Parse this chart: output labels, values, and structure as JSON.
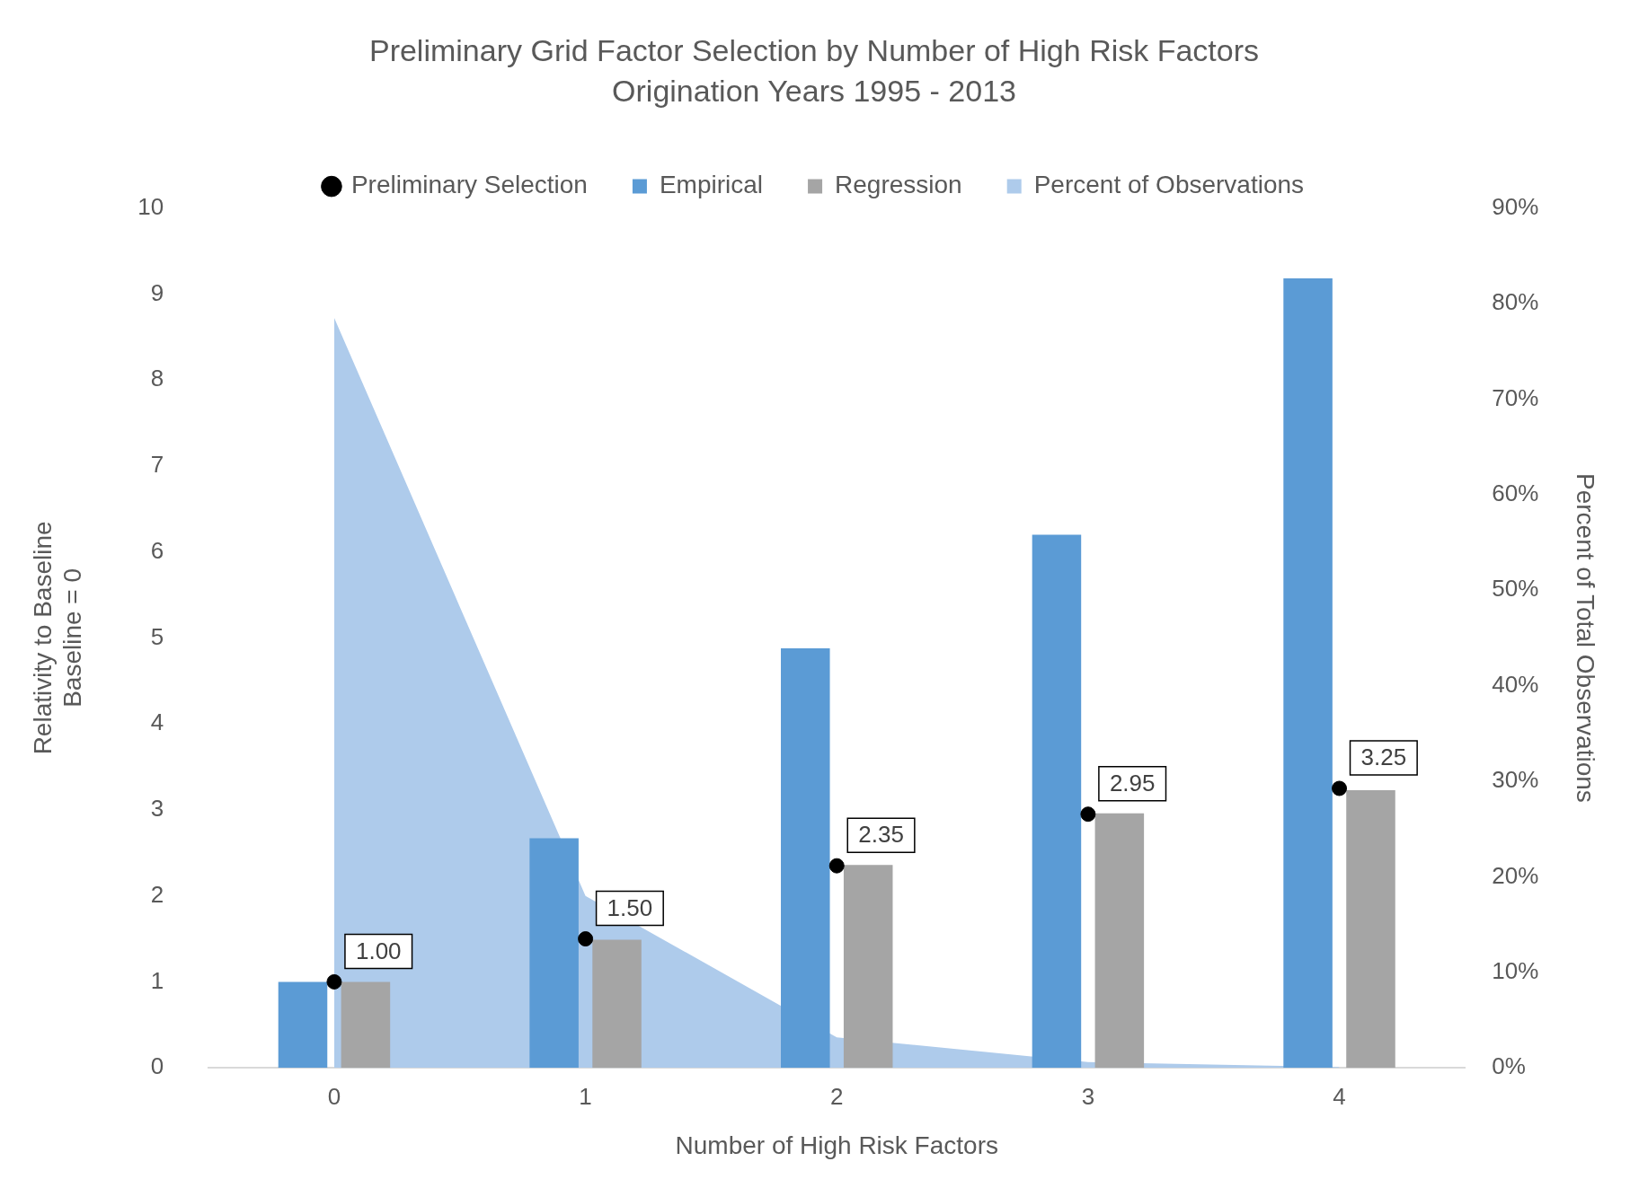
{
  "chart_data": {
    "type": "bar",
    "title": "Preliminary Grid Factor Selection by Number of High Risk Factors",
    "subtitle": "Origination Years 1995 - 2013",
    "xlabel": "Number of High Risk Factors",
    "ylabel": "Relativity to Baseline\nBaseline = 0",
    "y2label": "Percent of Total Observations",
    "categories": [
      "0",
      "1",
      "2",
      "3",
      "4"
    ],
    "series": [
      {
        "name": "Percent of Observations",
        "type": "area",
        "axis": "y2",
        "color": "#aecbeb",
        "values": [
          78.5,
          18,
          3.2,
          0.6,
          0.1
        ]
      },
      {
        "name": "Empirical",
        "color": "#5b9bd5",
        "values": [
          1.0,
          2.67,
          4.88,
          6.2,
          9.18
        ]
      },
      {
        "name": "Regression",
        "color": "#a5a5a5",
        "values": [
          1.0,
          1.49,
          2.36,
          2.96,
          3.23
        ]
      },
      {
        "name": "Preliminary Selection",
        "type": "scatter",
        "color": "#000000",
        "marker": "circle",
        "values": [
          1.0,
          1.5,
          2.35,
          2.95,
          3.25
        ],
        "value_labels": [
          "1.00",
          "1.50",
          "2.35",
          "2.95",
          "3.25"
        ]
      }
    ],
    "ylim": [
      0,
      10
    ],
    "yticks": [
      0,
      1,
      2,
      3,
      4,
      5,
      6,
      7,
      8,
      9,
      10
    ],
    "y2lim": [
      0,
      90
    ],
    "y2ticks": [
      {
        "value": 0,
        "label": "0%"
      },
      {
        "value": 10,
        "label": "10%"
      },
      {
        "value": 20,
        "label": "20%"
      },
      {
        "value": 30,
        "label": "30%"
      },
      {
        "value": 40,
        "label": "40%"
      },
      {
        "value": 50,
        "label": "50%"
      },
      {
        "value": 60,
        "label": "60%"
      },
      {
        "value": 70,
        "label": "70%"
      },
      {
        "value": 80,
        "label": "80%"
      },
      {
        "value": 90,
        "label": "90%"
      }
    ],
    "grid": false,
    "legend": "top"
  }
}
